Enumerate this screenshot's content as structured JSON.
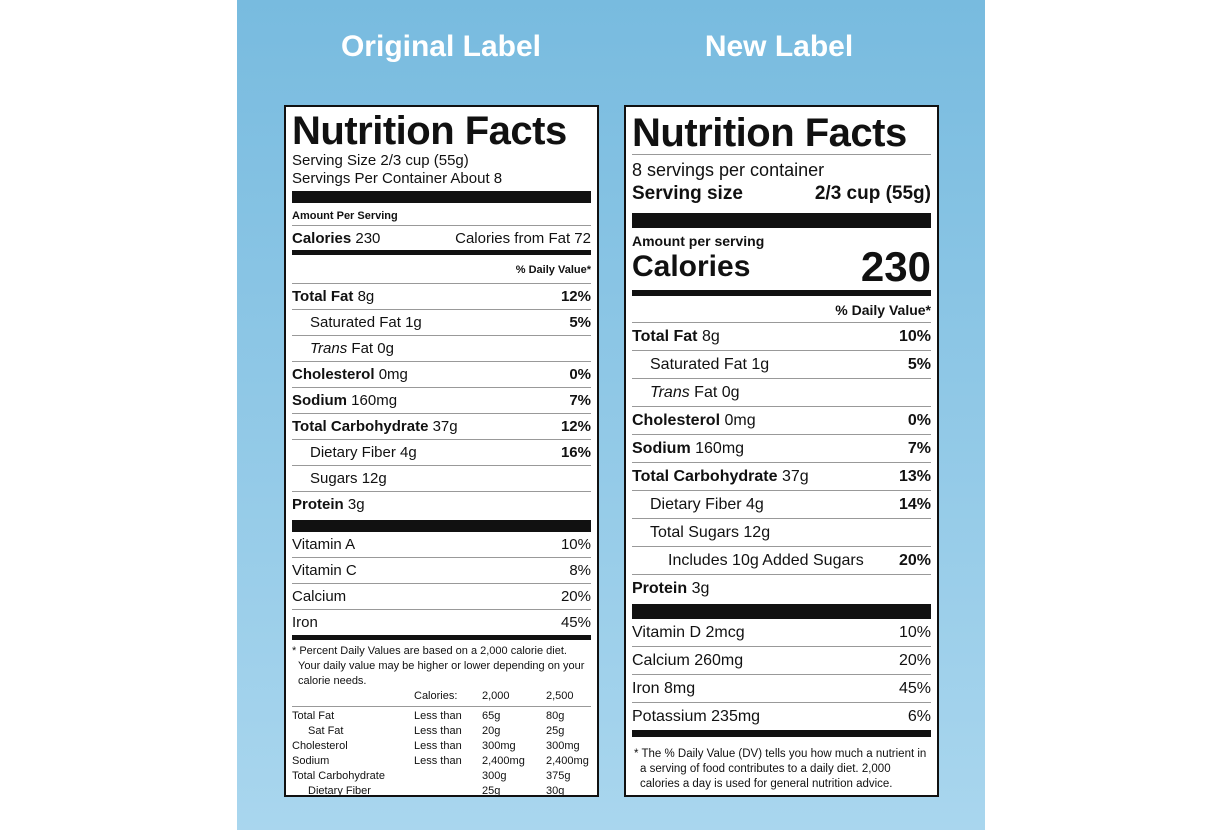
{
  "titles": {
    "original": "Original Label",
    "new": "New Label"
  },
  "original_label": {
    "heading": "Nutrition Facts",
    "serving_size": "Serving Size 2/3 cup (55g)",
    "servings_per_container": "Servings Per Container About 8",
    "amount_per_serving": "Amount Per Serving",
    "calories": {
      "label": "Calories",
      "value": "230"
    },
    "calories_from_fat": "Calories from Fat 72",
    "dv_header": "% Daily Value*",
    "nutrients": [
      {
        "name": "Total Fat",
        "amount": "8g",
        "dv": "12%",
        "indent": 0
      },
      {
        "name": "Saturated Fat",
        "amount": "1g",
        "dv": "5%",
        "indent": 1
      },
      {
        "italic": "Trans",
        "amount": "Fat 0g",
        "indent": 1
      },
      {
        "name": "Cholesterol",
        "amount": "0mg",
        "dv": "0%",
        "indent": 0
      },
      {
        "name": "Sodium",
        "amount": "160mg",
        "dv": "7%",
        "indent": 0
      },
      {
        "name": "Total Carbohydrate",
        "amount": "37g",
        "dv": "12%",
        "indent": 0
      },
      {
        "name": "Dietary Fiber",
        "amount": "4g",
        "dv": "16%",
        "indent": 1
      },
      {
        "name": "Sugars",
        "amount": "12g",
        "indent": 1
      },
      {
        "name": "Protein",
        "amount": "3g",
        "indent": 0
      }
    ],
    "vitamins": [
      {
        "name": "Vitamin A",
        "dv": "10%"
      },
      {
        "name": "Vitamin C",
        "dv": "8%"
      },
      {
        "name": "Calcium",
        "dv": "20%"
      },
      {
        "name": "Iron",
        "dv": "45%"
      }
    ],
    "footnote": "* Percent Daily Values are based on a 2,000 calorie diet. Your daily value may be higher or lower depending on your calorie needs.",
    "dv_table": {
      "header": {
        "label": "Calories:",
        "cols": [
          "2,000",
          "2,500"
        ]
      },
      "rows": [
        {
          "name": "Total Fat",
          "qualifier": "Less than",
          "cols": [
            "65g",
            "80g"
          ],
          "indent": 0
        },
        {
          "name": "Sat Fat",
          "qualifier": "Less than",
          "cols": [
            "20g",
            "25g"
          ],
          "indent": 1
        },
        {
          "name": "Cholesterol",
          "qualifier": "Less than",
          "cols": [
            "300mg",
            "300mg"
          ],
          "indent": 0
        },
        {
          "name": "Sodium",
          "qualifier": "Less than",
          "cols": [
            "2,400mg",
            "2,400mg"
          ],
          "indent": 0
        },
        {
          "name": "Total Carbohydrate",
          "cols": [
            "300g",
            "375g"
          ],
          "indent": 0
        },
        {
          "name": "Dietary Fiber",
          "cols": [
            "25g",
            "30g"
          ],
          "indent": 1
        }
      ]
    }
  },
  "new_label": {
    "heading": "Nutrition Facts",
    "servings_per_container": "8 servings per container",
    "serving_size": {
      "label": "Serving size",
      "value": "2/3 cup (55g)"
    },
    "amount_per_serving": "Amount per serving",
    "calories": {
      "label": "Calories",
      "value": "230"
    },
    "dv_header": "% Daily Value*",
    "nutrients": [
      {
        "name": "Total Fat",
        "amount": "8g",
        "dv": "10%",
        "indent": 0
      },
      {
        "name": "Saturated Fat",
        "amount": "1g",
        "dv": "5%",
        "indent": 1
      },
      {
        "italic": "Trans",
        "amount": "Fat 0g",
        "indent": 1
      },
      {
        "name": "Cholesterol",
        "amount": "0mg",
        "dv": "0%",
        "indent": 0
      },
      {
        "name": "Sodium",
        "amount": "160mg",
        "dv": "7%",
        "indent": 0
      },
      {
        "name": "Total Carbohydrate",
        "amount": "37g",
        "dv": "13%",
        "indent": 0
      },
      {
        "name": "Dietary Fiber",
        "amount": "4g",
        "dv": "14%",
        "indent": 1
      },
      {
        "name": "Total Sugars",
        "amount": "12g",
        "indent": 1
      },
      {
        "name": "Includes 10g Added Sugars",
        "dv": "20%",
        "indent": 2
      },
      {
        "name": "Protein",
        "amount": "3g",
        "indent": 0
      }
    ],
    "vitamins": [
      {
        "name": "Vitamin D 2mcg",
        "dv": "10%"
      },
      {
        "name": "Calcium 260mg",
        "dv": "20%"
      },
      {
        "name": "Iron 8mg",
        "dv": "45%"
      },
      {
        "name": "Potassium 235mg",
        "dv": "6%"
      }
    ],
    "footnote": "* The % Daily Value (DV) tells you how much a nutrient in a serving of food contributes to a daily diet. 2,000 calories a day is used for general nutrition advice."
  }
}
